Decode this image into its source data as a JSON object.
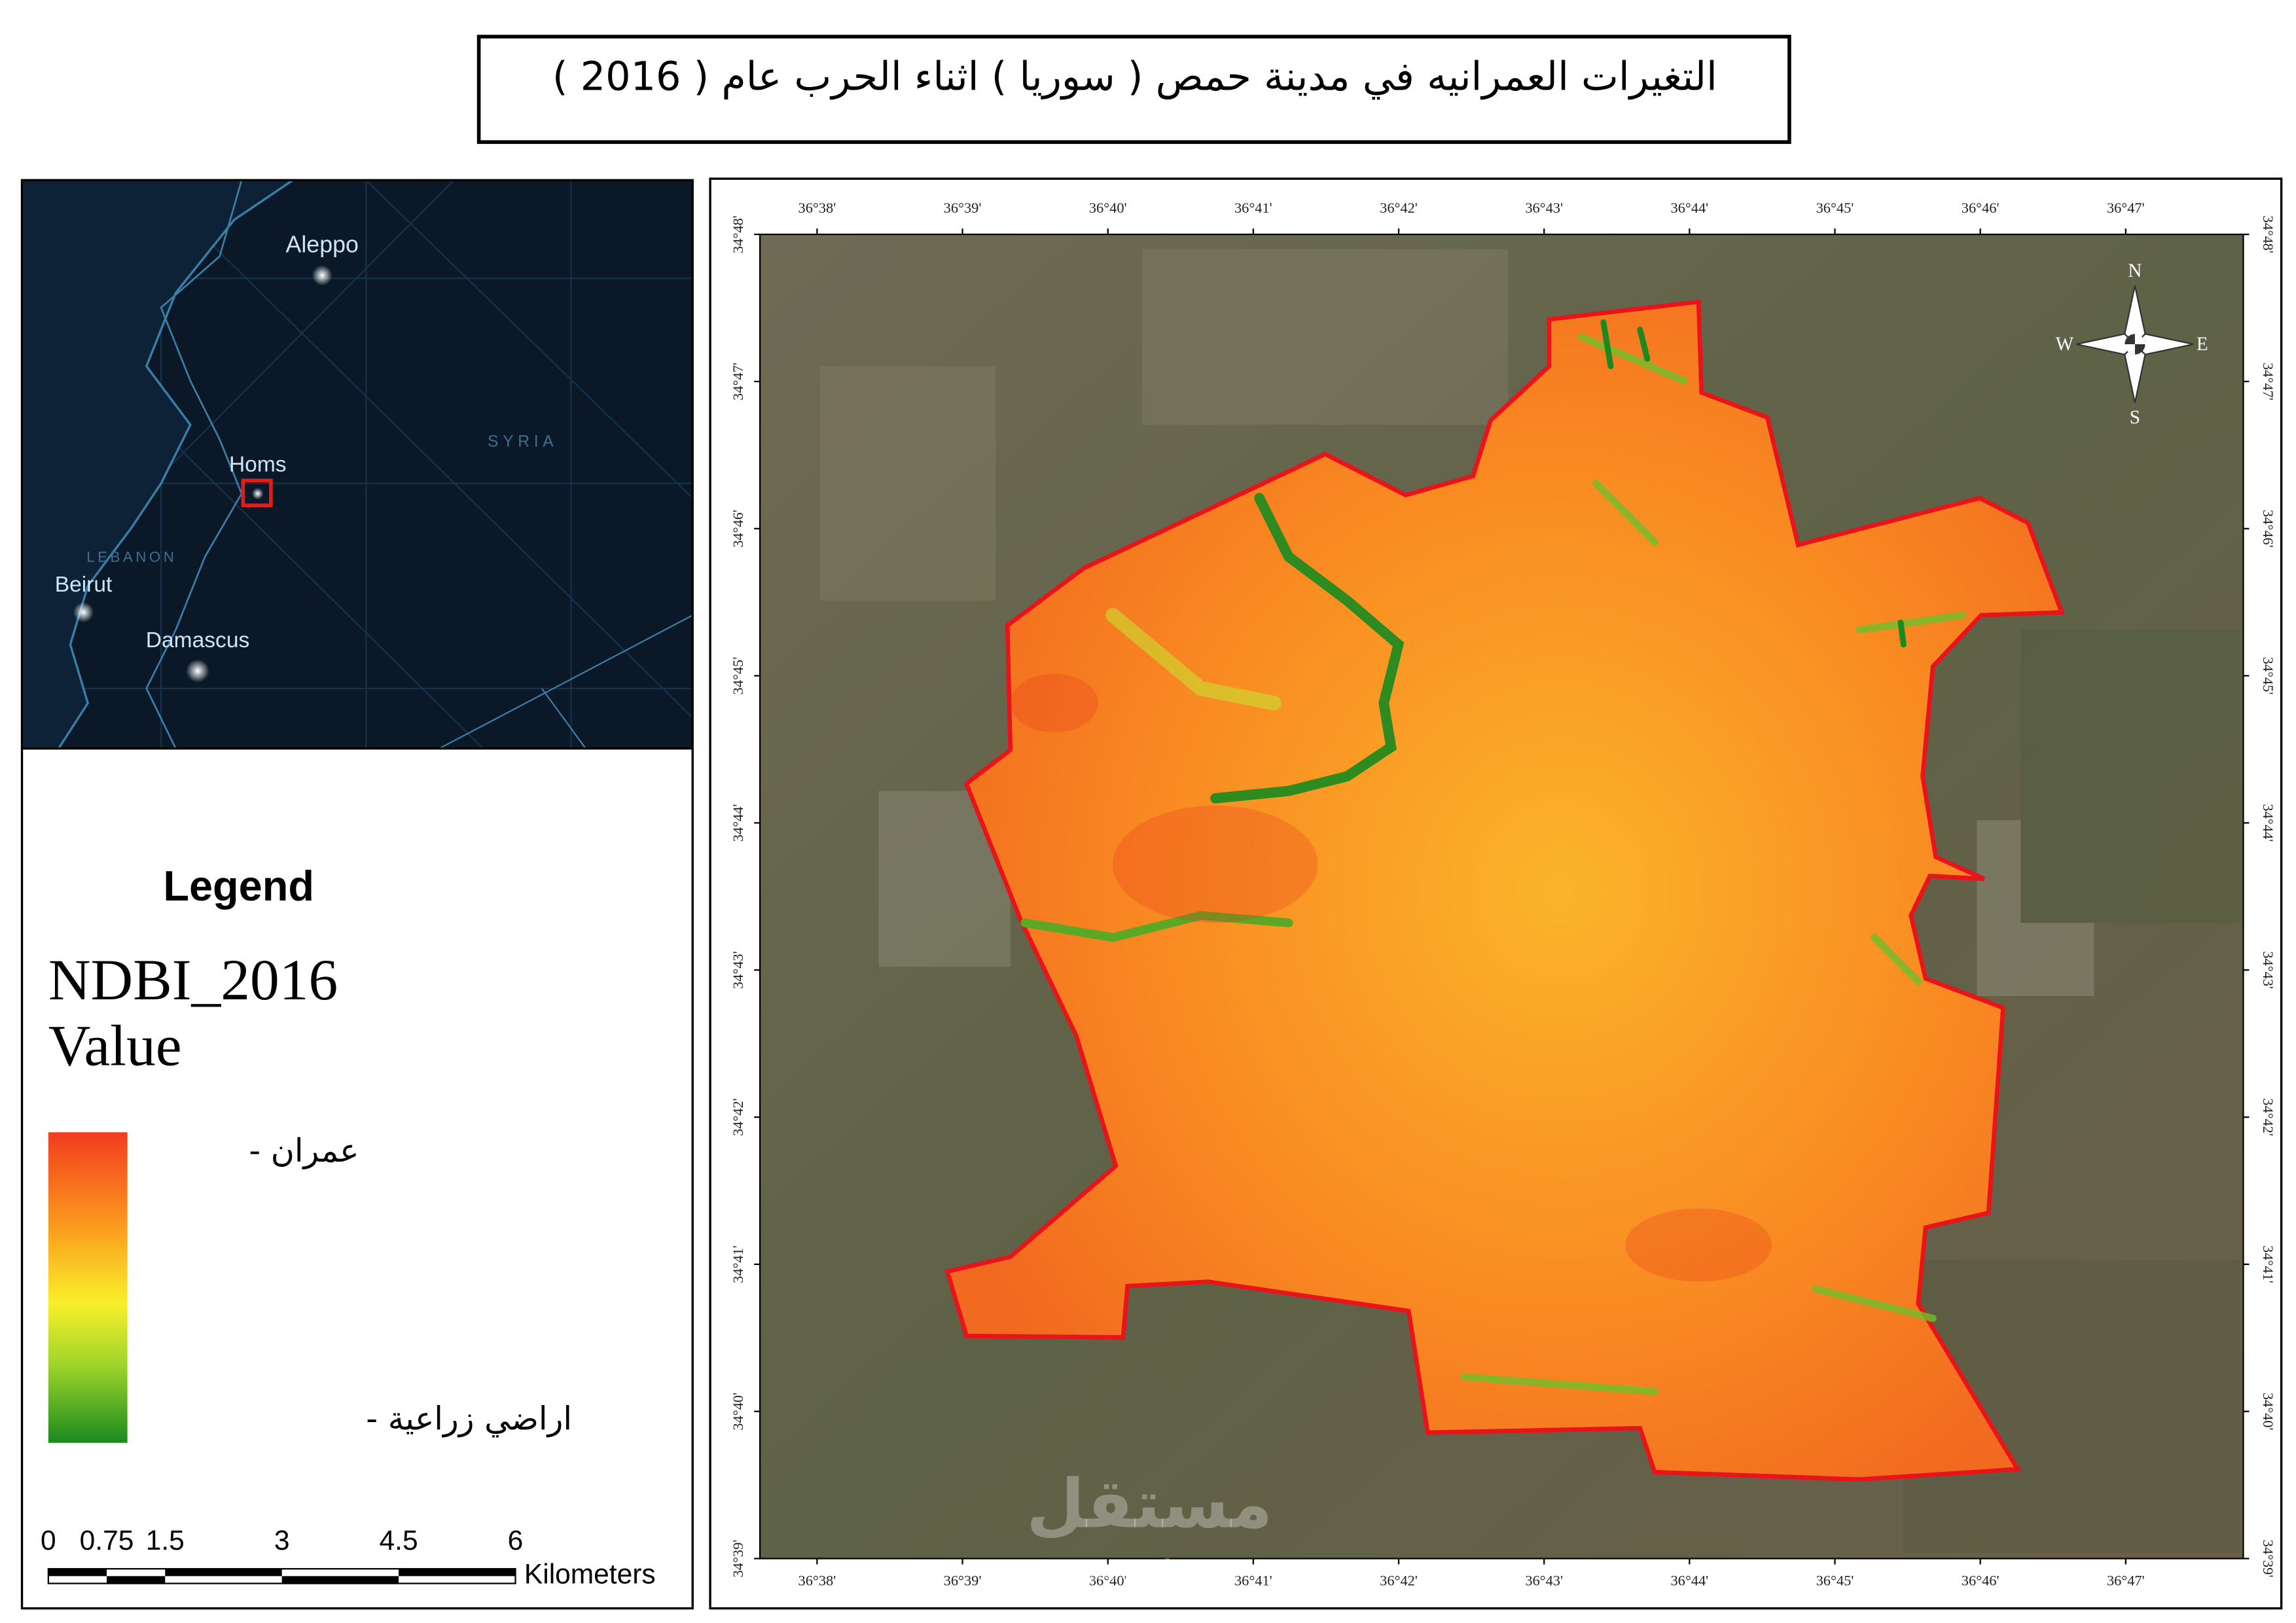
{
  "title": "التغيرات العمرانيه في مدينة حمص ( سوريا ) اثناء الحرب عام ( 2016 )",
  "inset_map": {
    "labels": {
      "aleppo": "Aleppo",
      "homs": "Homs",
      "syria": "SYRIA",
      "lebanon": "LEBANON",
      "beirut": "Beirut",
      "damascus": "Damascus"
    }
  },
  "legend": {
    "title": "Legend",
    "layer": "NDBI_2016",
    "field": "Value",
    "high_label": "عمران -",
    "low_label": "اراضي زراعية -"
  },
  "scale_bar": {
    "ticks": [
      0,
      0.75,
      1.5,
      3,
      4.5,
      6
    ],
    "unit": "Kilometers"
  },
  "map": {
    "longitudes": [
      "36°38'",
      "36°39'",
      "36°40'",
      "36°41'",
      "36°42'",
      "36°43'",
      "36°44'",
      "36°45'",
      "36°46'",
      "36°47'"
    ],
    "latitudes": [
      "34°48'",
      "34°47'",
      "34°46'",
      "34°45'",
      "34°44'",
      "34°43'",
      "34°42'",
      "34°41'",
      "34°40'",
      "34°39'"
    ],
    "compass": {
      "n": "N",
      "s": "S",
      "e": "E",
      "w": "W"
    },
    "watermark": {
      "arabic": "مستقل",
      "latin": "mostaql.com"
    }
  }
}
